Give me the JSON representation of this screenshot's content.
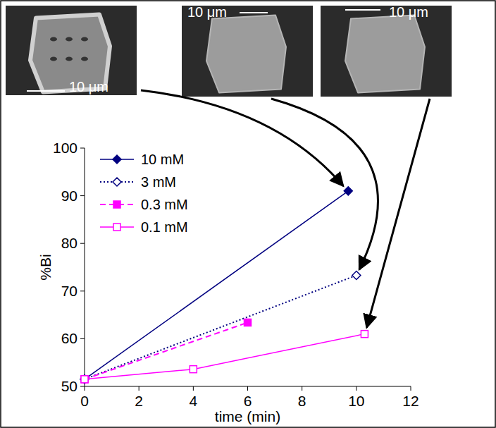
{
  "chart_data": {
    "type": "line",
    "x_label": "time (min)",
    "y_label": "%Bi",
    "xlim": [
      0,
      12
    ],
    "xticks": [
      0,
      2,
      4,
      6,
      8,
      10,
      12
    ],
    "ylim": [
      50,
      100
    ],
    "yticks": [
      50,
      60,
      70,
      80,
      90,
      100
    ],
    "grid": false,
    "legend": "top-left",
    "annotations": [
      "10 μm",
      "10 μm",
      "10 μm"
    ],
    "series": [
      {
        "name": "10 mM",
        "color": "#000080",
        "marker": "diamond",
        "line_style": "solid",
        "x": [
          0,
          9.7
        ],
        "values": [
          51.5,
          91
        ]
      },
      {
        "name": "3 mM",
        "color": "#000080",
        "marker": "diamond-open",
        "line_style": "dotted",
        "x": [
          0,
          10
        ],
        "values": [
          51.5,
          73.3
        ]
      },
      {
        "name": "0.3 mM",
        "color": "#ff00ff",
        "marker": "square",
        "line_style": "dashed",
        "x": [
          0,
          6
        ],
        "values": [
          51.5,
          63.4
        ]
      },
      {
        "name": "0.1 mM",
        "color": "#ff00ff",
        "marker": "square-open",
        "line_style": "solid",
        "x": [
          0,
          4,
          10.3
        ],
        "values": [
          51.5,
          53.6,
          61
        ]
      }
    ]
  }
}
